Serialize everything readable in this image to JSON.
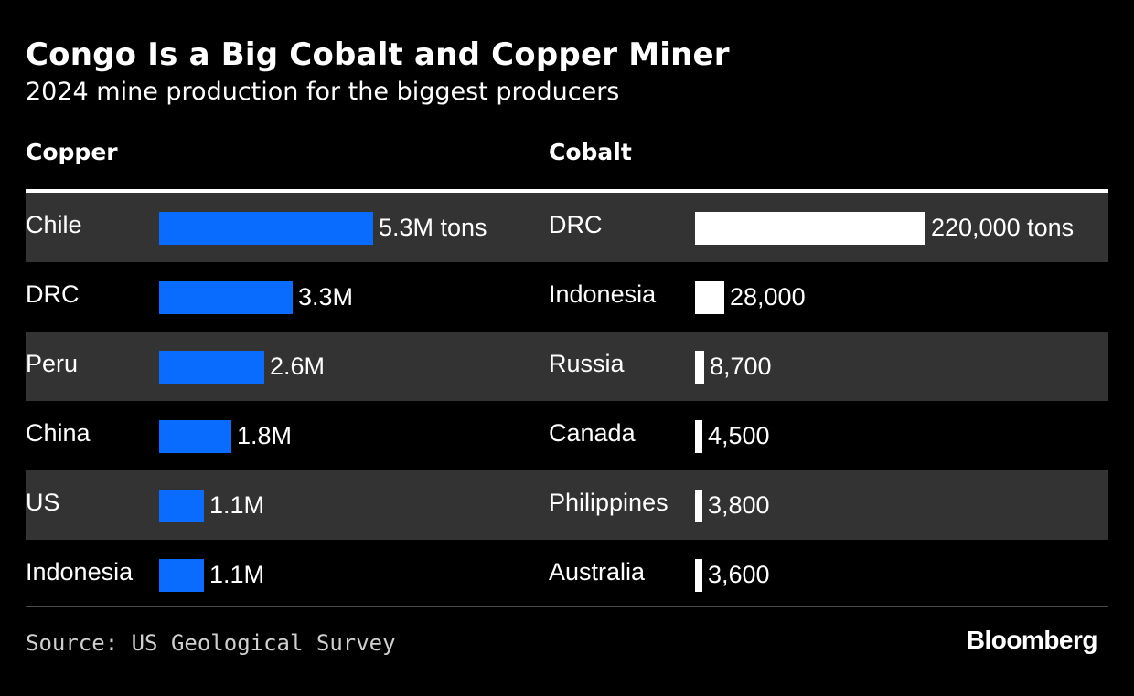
{
  "title": "Congo Is a Big Cobalt and Copper Miner",
  "subtitle": "2024 mine production for the biggest producers",
  "footer": {
    "source": "Source: US Geological Survey",
    "brand": "Bloomberg"
  },
  "colors": {
    "background": "#000000",
    "copper_bar": "#0a6cff",
    "cobalt_bar": "#ffffff",
    "row_band": "#333333"
  },
  "chart_data": [
    {
      "type": "bar",
      "orientation": "horizontal",
      "title": "Copper",
      "unit": "tons",
      "categories": [
        "Chile",
        "DRC",
        "Peru",
        "China",
        "US",
        "Indonesia"
      ],
      "values": [
        5300000,
        3300000,
        2600000,
        1800000,
        1100000,
        1100000
      ],
      "value_labels": [
        "5.3M tons",
        "3.3M",
        "2.6M",
        "1.8M",
        "1.1M",
        "1.1M"
      ],
      "xlim": [
        0,
        5300000
      ]
    },
    {
      "type": "bar",
      "orientation": "horizontal",
      "title": "Cobalt",
      "unit": "tons",
      "categories": [
        "DRC",
        "Indonesia",
        "Russia",
        "Canada",
        "Philippines",
        "Australia"
      ],
      "values": [
        220000,
        28000,
        8700,
        4500,
        3800,
        3600
      ],
      "value_labels": [
        "220,000 tons",
        "28,000",
        "8,700",
        "4,500",
        "3,800",
        "3,600"
      ],
      "xlim": [
        0,
        220000
      ]
    }
  ]
}
